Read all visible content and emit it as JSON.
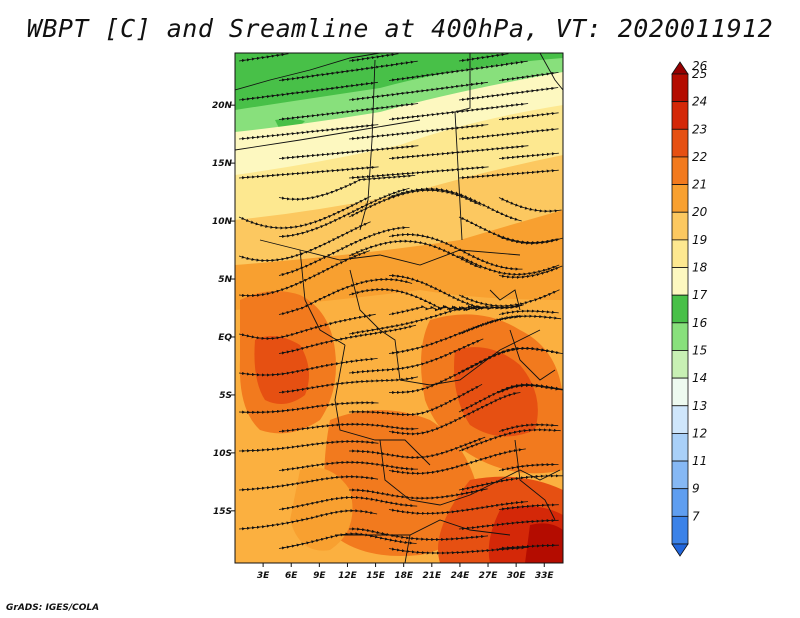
{
  "title": "WBPT [C] and Sreamline at 400hPa, VT: 2020011912",
  "credit": "GrADS: IGES/COLA",
  "chart_data": {
    "type": "heatmap",
    "title": "WBPT [C] and Sreamline at 400hPa, VT: 2020011912",
    "variable": "Wet-bulb potential temperature [C] with streamlines at 400hPa",
    "xlim": [
      0,
      35
    ],
    "ylim": [
      -19.5,
      24.5
    ],
    "x_ticks": [
      {
        "value": 3,
        "label": "3E"
      },
      {
        "value": 6,
        "label": "6E"
      },
      {
        "value": 9,
        "label": "9E"
      },
      {
        "value": 12,
        "label": "12E"
      },
      {
        "value": 15,
        "label": "15E"
      },
      {
        "value": 18,
        "label": "18E"
      },
      {
        "value": 21,
        "label": "21E"
      },
      {
        "value": 24,
        "label": "24E"
      },
      {
        "value": 27,
        "label": "27E"
      },
      {
        "value": 30,
        "label": "30E"
      },
      {
        "value": 33,
        "label": "33E"
      }
    ],
    "y_ticks": [
      {
        "value": 20,
        "label": "20N"
      },
      {
        "value": 15,
        "label": "15N"
      },
      {
        "value": 10,
        "label": "10N"
      },
      {
        "value": 5,
        "label": "5N"
      },
      {
        "value": 0,
        "label": "EQ"
      },
      {
        "value": -5,
        "label": "5S"
      },
      {
        "value": -10,
        "label": "10S"
      },
      {
        "value": -15,
        "label": "15S"
      }
    ],
    "colorbar": {
      "levels": [
        "7",
        "9",
        "11",
        "12",
        "13",
        "14",
        "15",
        "16",
        "17",
        "18",
        "19",
        "20",
        "21",
        "22",
        "23",
        "24",
        "25",
        "26"
      ],
      "colors": [
        "#2166dc",
        "#3b82e8",
        "#5f9ef0",
        "#86b8f4",
        "#a9d0f8",
        "#cfe6fb",
        "#eefaf0",
        "#c8f0b4",
        "#88e07c",
        "#48c048",
        "#fdf8c0",
        "#fde890",
        "#fcc860",
        "#f8a030",
        "#f27a1e",
        "#e65012",
        "#d42808",
        "#b40c00",
        "#960000"
      ]
    }
  }
}
